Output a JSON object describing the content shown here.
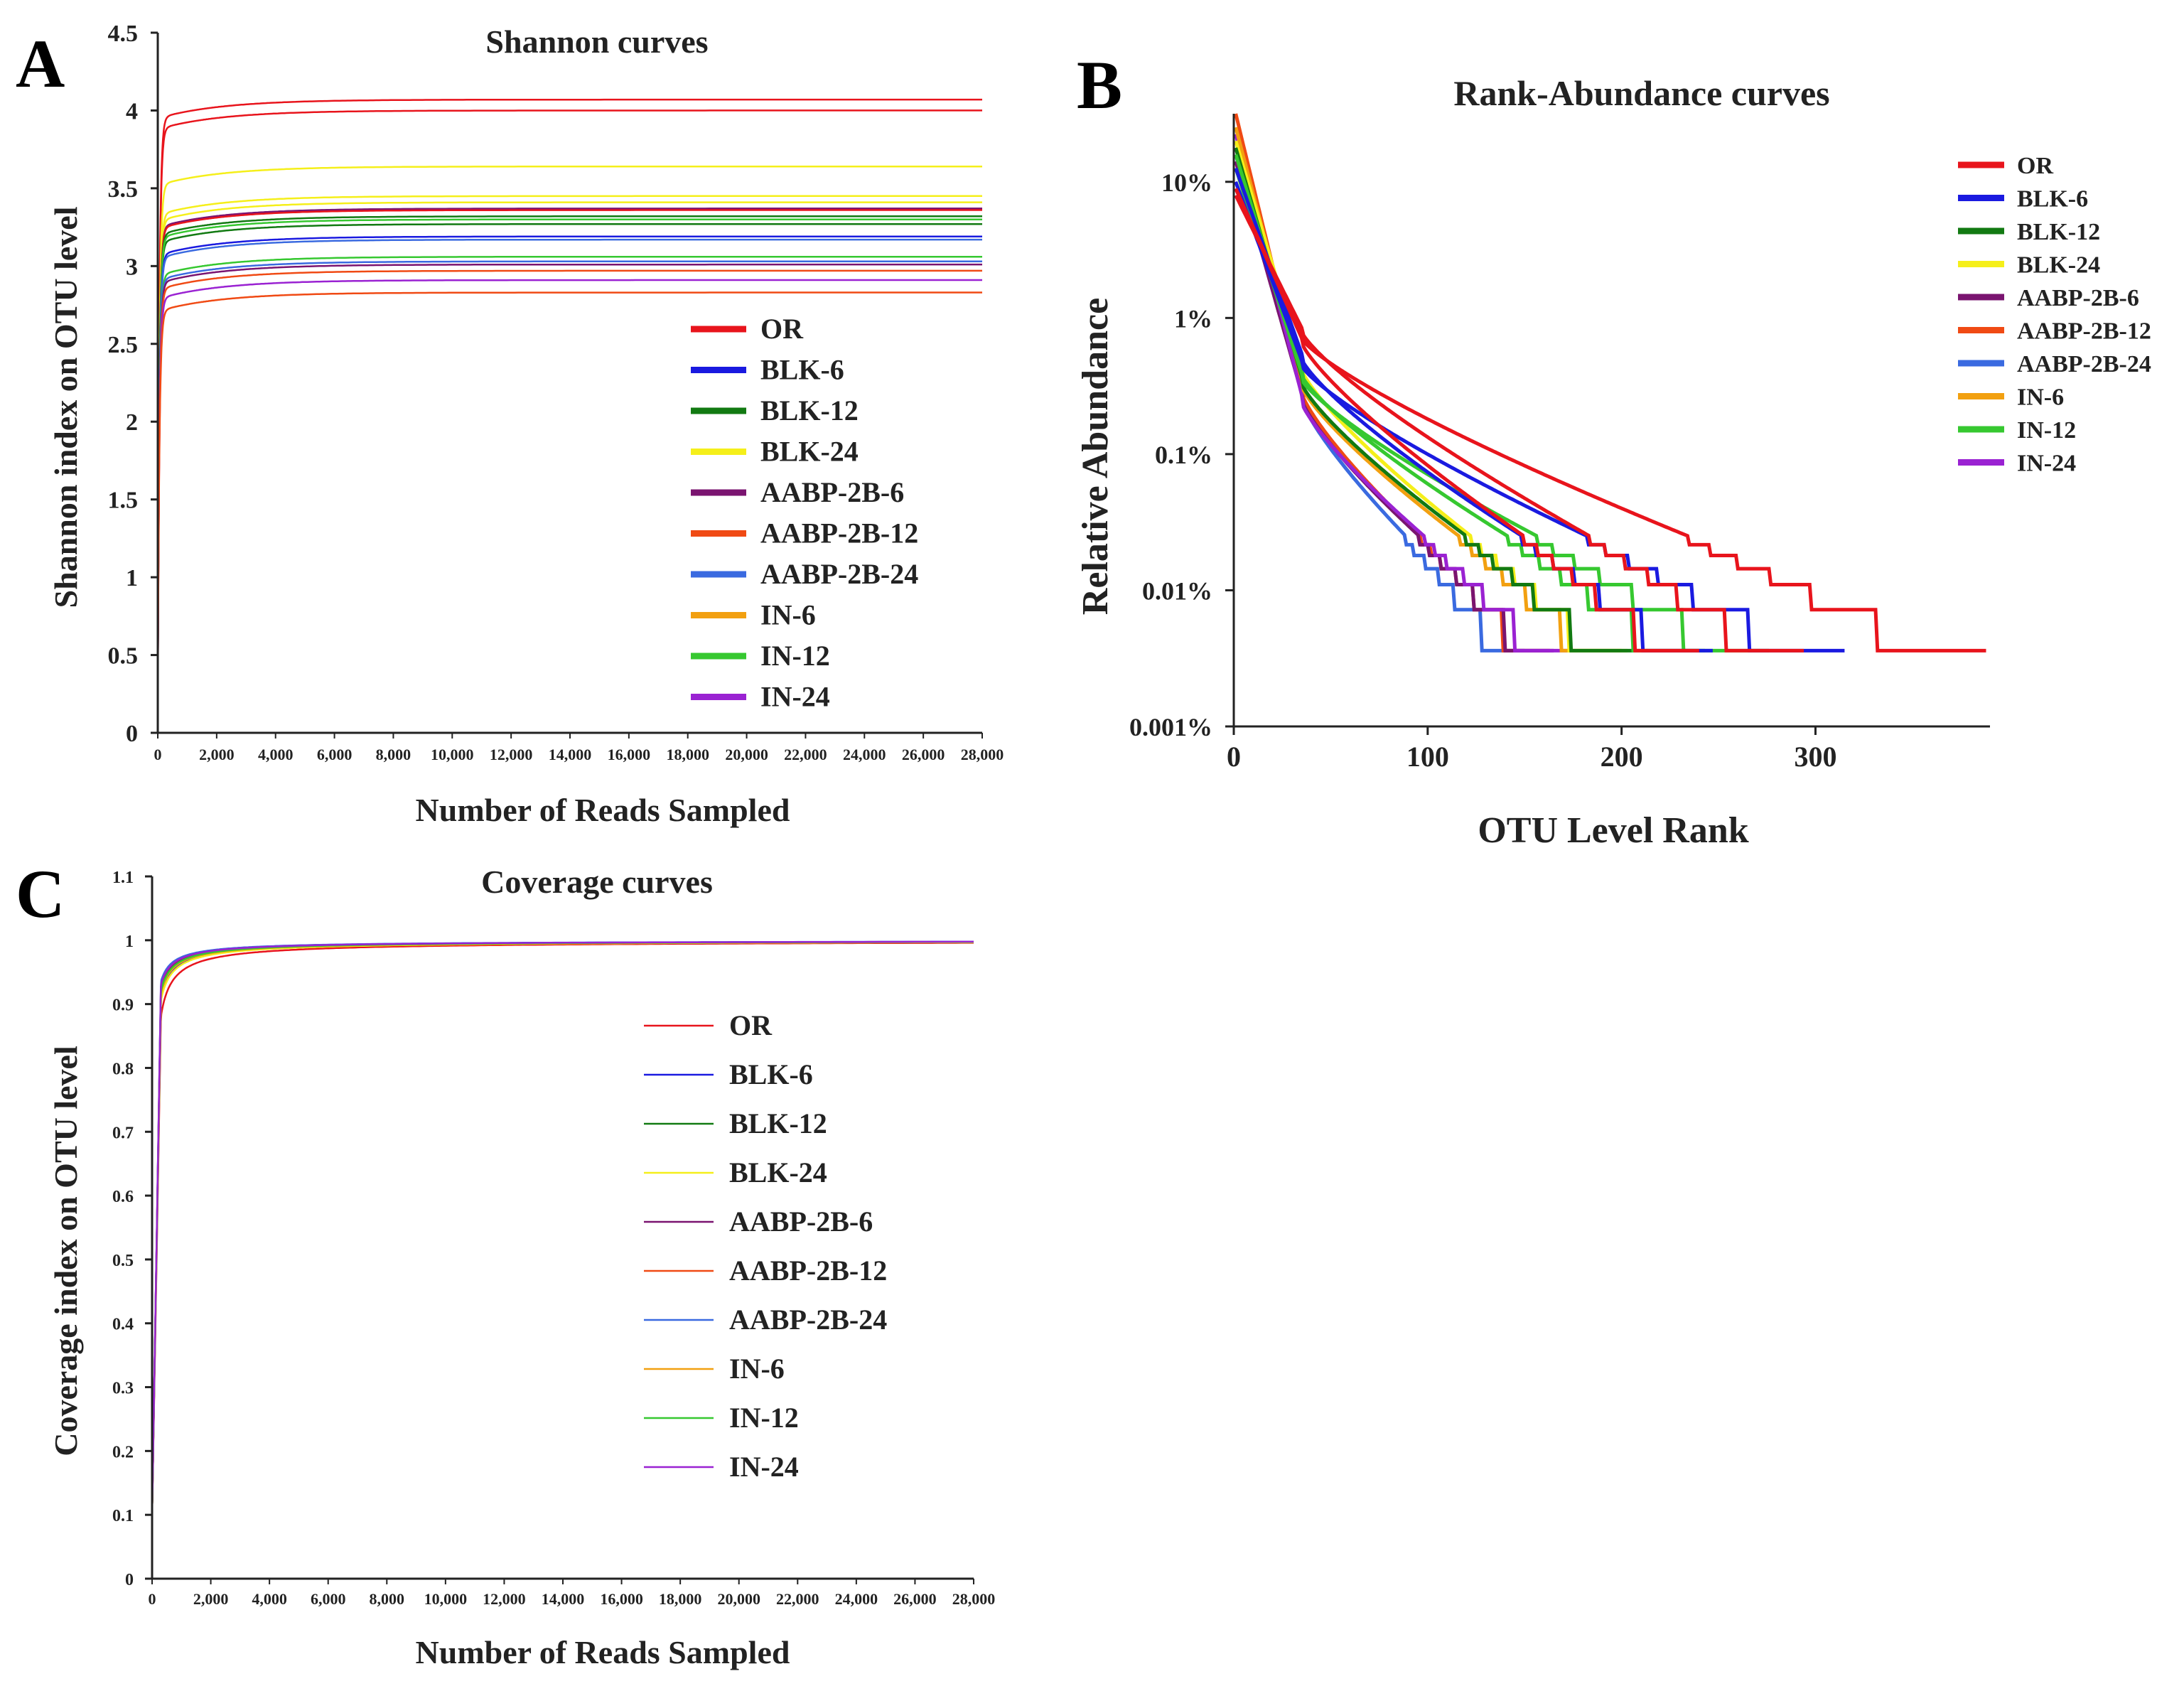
{
  "panels": [
    "A",
    "B",
    "C"
  ],
  "chart_data": [
    {
      "id": "A",
      "type": "line",
      "title": "Shannon curves",
      "xlabel": "Number of Reads Sampled",
      "ylabel": "Shannon index on OTU level",
      "xlim": [
        0,
        28000
      ],
      "ylim": [
        0,
        4.5
      ],
      "xticks": [
        0,
        2000,
        4000,
        6000,
        8000,
        10000,
        12000,
        14000,
        16000,
        18000,
        20000,
        22000,
        24000,
        26000,
        28000
      ],
      "xtick_labels": [
        "0",
        "2,000",
        "4,000",
        "6,000",
        "8,000",
        "10,000",
        "12,000",
        "14,000",
        "16,000",
        "18,000",
        "20,000",
        "22,000",
        "24,000",
        "26,000",
        "28,000"
      ],
      "yticks": [
        0,
        0.5,
        1,
        1.5,
        2,
        2.5,
        3,
        3.5,
        4,
        4.5
      ],
      "ytick_labels": [
        "0",
        "0.5",
        "1",
        "1.5",
        "2",
        "2.5",
        "3",
        "3.5",
        "4",
        "4.5"
      ],
      "legend": [
        "OR",
        "BLK-6",
        "BLK-12",
        "BLK-24",
        "AABP-2B-6",
        "AABP-2B-12",
        "AABP-2B-24",
        "IN-6",
        "IN-12",
        "IN-24"
      ],
      "legend_colors": [
        "#e8141c",
        "#1a1ae0",
        "#127a12",
        "#f5ef1a",
        "#7a1470",
        "#f04a14",
        "#3a6ae0",
        "#f2a010",
        "#36c830",
        "#9a22d2"
      ],
      "legend_position": "center-right",
      "series": [
        {
          "name": "OR",
          "color": "#e8141c",
          "asymptote": 4.07,
          "rise": 0.5
        },
        {
          "name": "OR",
          "color": "#e8141c",
          "asymptote": 4.0,
          "rise": 0.5
        },
        {
          "name": "BLK-24",
          "color": "#f5ef1a",
          "asymptote": 3.64,
          "rise": 0.5
        },
        {
          "name": "BLK-24",
          "color": "#f5ef1a",
          "asymptote": 3.45,
          "rise": 0.5
        },
        {
          "name": "BLK-24",
          "color": "#f5ef1a",
          "asymptote": 3.41,
          "rise": 0.5
        },
        {
          "name": "AABP-2B-6",
          "color": "#7a1470",
          "asymptote": 3.37,
          "rise": 0.5
        },
        {
          "name": "OR",
          "color": "#e8141c",
          "asymptote": 3.36,
          "rise": 0.5
        },
        {
          "name": "BLK-12",
          "color": "#127a12",
          "asymptote": 3.32,
          "rise": 0.5
        },
        {
          "name": "BLK-12",
          "color": "#127a12",
          "asymptote": 3.27,
          "rise": 0.5
        },
        {
          "name": "IN-12",
          "color": "#36c830",
          "asymptote": 3.3,
          "rise": 0.5
        },
        {
          "name": "BLK-6",
          "color": "#1a1ae0",
          "asymptote": 3.19,
          "rise": 0.5
        },
        {
          "name": "AABP-2B-24",
          "color": "#3a6ae0",
          "asymptote": 3.17,
          "rise": 0.5
        },
        {
          "name": "IN-12",
          "color": "#36c830",
          "asymptote": 3.06,
          "rise": 0.5
        },
        {
          "name": "AABP-2B-24",
          "color": "#3a6ae0",
          "asymptote": 3.03,
          "rise": 0.5
        },
        {
          "name": "AABP-2B-6",
          "color": "#7a1470",
          "asymptote": 3.01,
          "rise": 0.5
        },
        {
          "name": "AABP-2B-12",
          "color": "#f04a14",
          "asymptote": 2.97,
          "rise": 0.5
        },
        {
          "name": "IN-24",
          "color": "#9a22d2",
          "asymptote": 2.91,
          "rise": 0.5
        },
        {
          "name": "AABP-2B-12",
          "color": "#f04a14",
          "asymptote": 2.83,
          "rise": 0.5
        }
      ]
    },
    {
      "id": "B",
      "type": "line",
      "title": "Rank-Abundance curves",
      "xlabel": "OTU Level Rank",
      "ylabel": "Relative Abundance",
      "xlim": [
        0,
        390
      ],
      "ylim_log10_percent": [
        -3,
        1.5
      ],
      "xticks": [
        0,
        100,
        200,
        300
      ],
      "xtick_labels": [
        "0",
        "100",
        "200",
        "300"
      ],
      "yticks_log10_percent": [
        -3,
        -2,
        -1,
        0,
        1
      ],
      "ytick_labels": [
        "0.001%",
        "0.01%",
        "0.1%",
        "1%",
        "10%"
      ],
      "legend": [
        "OR",
        "BLK-6",
        "BLK-12",
        "BLK-24",
        "AABP-2B-6",
        "AABP-2B-12",
        "AABP-2B-24",
        "IN-6",
        "IN-12",
        "IN-24"
      ],
      "legend_colors": [
        "#e8141c",
        "#1a1ae0",
        "#127a12",
        "#f5ef1a",
        "#7a1470",
        "#f04a14",
        "#3a6ae0",
        "#f2a010",
        "#36c830",
        "#9a22d2"
      ],
      "legend_position": "top-right",
      "series": [
        {
          "name": "AABP-2B-24",
          "color": "#3a6ae0",
          "max_rank": 150,
          "log_start": 1.2,
          "log_mid": -0.6
        },
        {
          "name": "AABP-2B-12",
          "color": "#f04a14",
          "max_rank": 163,
          "log_start": 1.5,
          "log_mid": -0.55
        },
        {
          "name": "AABP-2B-6",
          "color": "#7a1470",
          "max_rank": 165,
          "log_start": 1.15,
          "log_mid": -0.6
        },
        {
          "name": "IN-24",
          "color": "#9a22d2",
          "max_rank": 172,
          "log_start": 1.35,
          "log_mid": -0.62
        },
        {
          "name": "IN-6",
          "color": "#f2a010",
          "max_rank": 200,
          "log_start": 1.4,
          "log_mid": -0.5
        },
        {
          "name": "BLK-24",
          "color": "#f5ef1a",
          "max_rank": 203,
          "log_start": 1.3,
          "log_mid": -0.38
        },
        {
          "name": "BLK-12",
          "color": "#127a12",
          "max_rank": 206,
          "log_start": 1.25,
          "log_mid": -0.48
        },
        {
          "name": "IN-12",
          "color": "#36c830",
          "max_rank": 243,
          "log_start": 1.2,
          "log_mid": -0.42
        },
        {
          "name": "IN-12",
          "color": "#36c830",
          "max_rank": 276,
          "log_start": 1.1,
          "log_mid": -0.45
        },
        {
          "name": "BLK-6",
          "color": "#1a1ae0",
          "max_rank": 247,
          "log_start": 1.1,
          "log_mid": -0.3
        },
        {
          "name": "BLK-6",
          "color": "#1a1ae0",
          "max_rank": 315,
          "log_start": 1.0,
          "log_mid": -0.35
        },
        {
          "name": "OR",
          "color": "#e8141c",
          "max_rank": 240,
          "log_start": 0.95,
          "log_mid": -0.18
        },
        {
          "name": "OR",
          "color": "#e8141c",
          "max_rank": 294,
          "log_start": 0.9,
          "log_mid": -0.1
        },
        {
          "name": "OR",
          "color": "#e8141c",
          "max_rank": 388,
          "log_start": 0.95,
          "log_mid": -0.15
        }
      ]
    },
    {
      "id": "C",
      "type": "line",
      "title": "Coverage curves",
      "xlabel": "Number of Reads Sampled",
      "ylabel": "Coverage index on OTU level",
      "xlim": [
        0,
        28000
      ],
      "ylim": [
        0,
        1.1
      ],
      "xticks": [
        0,
        2000,
        4000,
        6000,
        8000,
        10000,
        12000,
        14000,
        16000,
        18000,
        20000,
        22000,
        24000,
        26000,
        28000
      ],
      "xtick_labels": [
        "0",
        "2,000",
        "4,000",
        "6,000",
        "8,000",
        "10,000",
        "12,000",
        "14,000",
        "16,000",
        "18,000",
        "20,000",
        "22,000",
        "24,000",
        "26,000",
        "28,000"
      ],
      "yticks": [
        0,
        0.1,
        0.2,
        0.3,
        0.4,
        0.5,
        0.6,
        0.7,
        0.8,
        0.9,
        1,
        1.1
      ],
      "ytick_labels": [
        "0",
        "0.1",
        "0.2",
        "0.3",
        "0.4",
        "0.5",
        "0.6",
        "0.7",
        "0.8",
        "0.9",
        "1",
        "1.1"
      ],
      "legend": [
        "OR",
        "BLK-6",
        "BLK-12",
        "BLK-24",
        "AABP-2B-6",
        "AABP-2B-12",
        "AABP-2B-24",
        "IN-6",
        "IN-12",
        "IN-24"
      ],
      "legend_colors": [
        "#e8141c",
        "#1a1ae0",
        "#127a12",
        "#f5ef1a",
        "#7a1470",
        "#f04a14",
        "#3a6ae0",
        "#f2a010",
        "#36c830",
        "#9a22d2"
      ],
      "legend_position": "center-right",
      "series": [
        {
          "name": "OR",
          "color": "#e8141c",
          "start": 0.88
        },
        {
          "name": "BLK-6",
          "color": "#1a1ae0",
          "start": 0.91
        },
        {
          "name": "BLK-12",
          "color": "#127a12",
          "start": 0.92
        },
        {
          "name": "BLK-24",
          "color": "#f5ef1a",
          "start": 0.905
        },
        {
          "name": "AABP-2B-6",
          "color": "#7a1470",
          "start": 0.925
        },
        {
          "name": "AABP-2B-12",
          "color": "#f04a14",
          "start": 0.93
        },
        {
          "name": "AABP-2B-24",
          "color": "#3a6ae0",
          "start": 0.935
        },
        {
          "name": "IN-6",
          "color": "#f2a010",
          "start": 0.915
        },
        {
          "name": "IN-12",
          "color": "#36c830",
          "start": 0.92
        },
        {
          "name": "IN-24",
          "color": "#9a22d2",
          "start": 0.93
        }
      ]
    }
  ]
}
